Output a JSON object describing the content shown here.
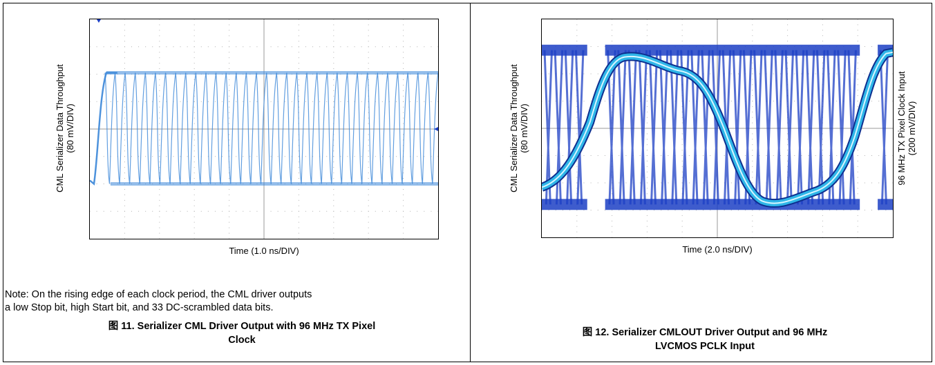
{
  "left_figure": {
    "y_axis_label_line1": "CML Serializer Data Throughput",
    "y_axis_label_line2": "(80 mV/DIV)",
    "x_axis_label": "Time (1.0 ns/DIV)",
    "note_line1": "Note: On the rising edge of each clock period, the CML driver outputs",
    "note_line2": "a low Stop bit, high Start bit, and 33 DC-scrambled data bits.",
    "caption_line1": "图 11. Serializer CML Driver Output with 96 MHz TX Pixel",
    "caption_line2": "Clock",
    "trace_color": "#3a86d8"
  },
  "right_figure": {
    "y_axis_label_line1": "CML Serializer Data Throughput",
    "y_axis_label_line2": "(80 mV/DIV)",
    "y2_axis_label_line1": "96 MHz TX Pixel Clock Input",
    "y2_axis_label_line2": "(200 mV/DIV)",
    "x_axis_label": "Time (2.0 ns/DIV)",
    "caption_line1": "图 12. Serializer CMLOUT Driver Output and 96 MHz",
    "caption_line2": "LVCMOS PCLK Input",
    "eye_color": "#1c3fc4",
    "clock_color": "#2fb6e8"
  }
}
